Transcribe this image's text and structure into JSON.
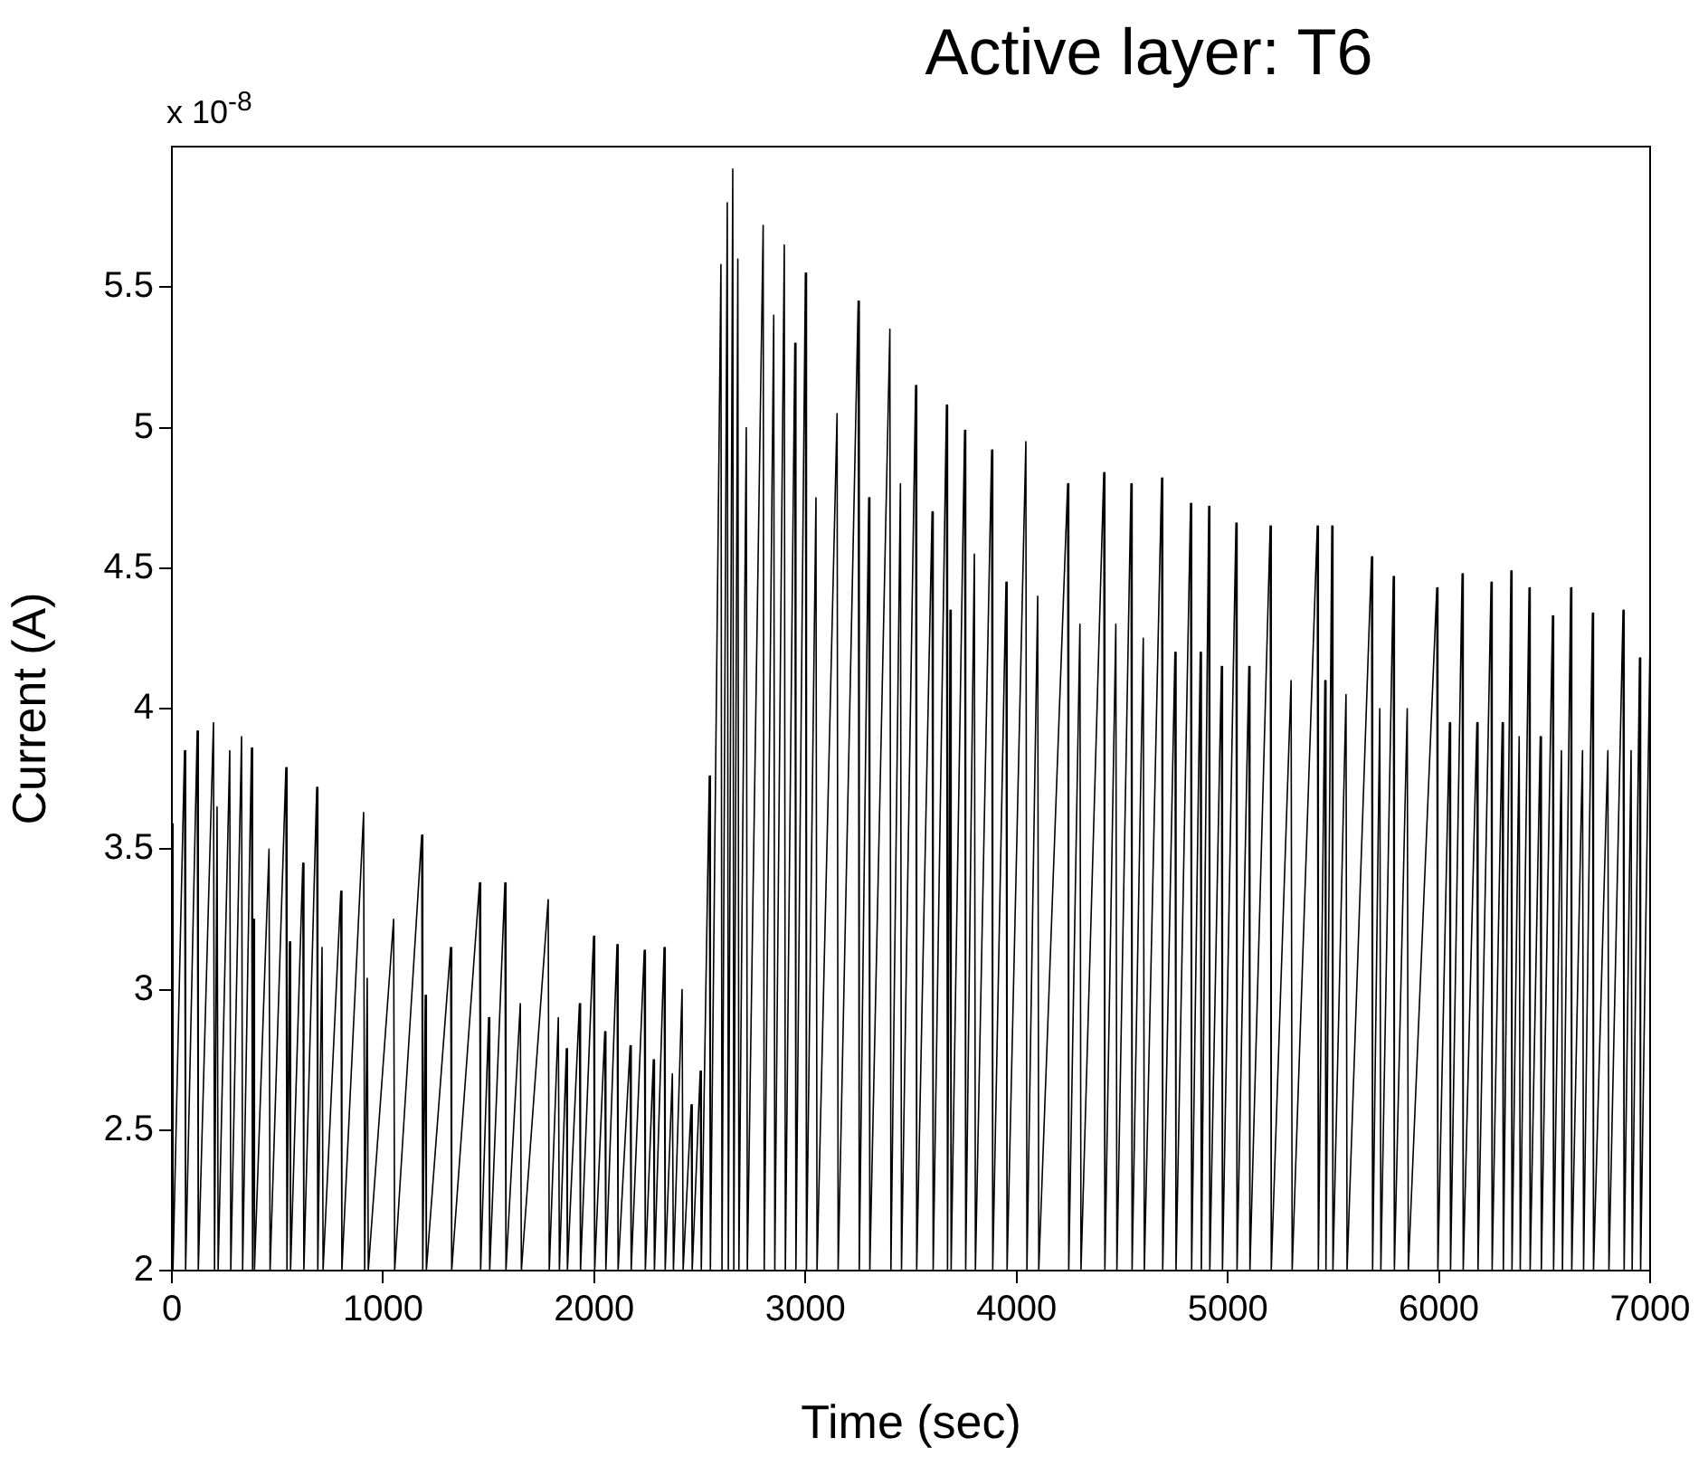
{
  "chart_data": {
    "type": "line",
    "title": "Active layer: T6",
    "xlabel": "Time (sec)",
    "ylabel": "Current (A)",
    "annotations": [
      "x 10$^{-8}$"
    ],
    "xlim": [
      0,
      7000
    ],
    "xticks": [
      0,
      1000,
      2000,
      3000,
      4000,
      5000,
      6000,
      7000
    ],
    "ylim": [
      2,
      6
    ],
    "yticks": [
      2,
      2.5,
      3,
      3.5,
      4,
      4.5,
      5,
      5.5
    ],
    "grid": false,
    "legend": false,
    "marker": "none",
    "line_style": "solid",
    "series": [
      {
        "color": "#000000",
        "x": [
          0,
          5,
          60,
          65,
          120,
          125,
          197,
          202,
          214,
          219,
          274,
          279,
          330,
          335,
          377,
          382,
          386,
          391,
          460,
          465,
          540,
          545,
          557,
          562,
          620,
          625,
          686,
          691,
          711,
          716,
          800,
          805,
          908,
          913,
          925,
          930,
          1050,
          1055,
          1183,
          1188,
          1200,
          1205,
          1320,
          1325,
          1457,
          1462,
          1500,
          1505,
          1577,
          1582,
          1650,
          1655,
          1782,
          1787,
          1830,
          1835,
          1868,
          1873,
          1930,
          1935,
          1997,
          2002,
          2050,
          2055,
          2108,
          2113,
          2170,
          2175,
          2237,
          2242,
          2280,
          2285,
          2331,
          2336,
          2370,
          2375,
          2416,
          2421,
          2459,
          2464,
          2502,
          2507,
          2545,
          2550,
          2600,
          2605,
          2630,
          2635,
          2656,
          2661,
          2680,
          2685,
          2720,
          2725,
          2800,
          2805,
          2850,
          2855,
          2900,
          2905,
          2950,
          2955,
          3000,
          3005,
          3050,
          3055,
          3150,
          3155,
          3250,
          3255,
          3300,
          3305,
          3400,
          3405,
          3450,
          3455,
          3522,
          3527,
          3600,
          3605,
          3668,
          3673,
          3685,
          3690,
          3754,
          3759,
          3800,
          3805,
          3882,
          3887,
          3950,
          3955,
          4044,
          4049,
          4100,
          4105,
          4242,
          4247,
          4300,
          4305,
          4413,
          4418,
          4470,
          4475,
          4542,
          4547,
          4600,
          4605,
          4687,
          4692,
          4750,
          4755,
          4824,
          4829,
          4870,
          4875,
          4910,
          4915,
          4970,
          4975,
          5039,
          5044,
          5100,
          5105,
          5201,
          5206,
          5300,
          5305,
          5424,
          5429,
          5460,
          5465,
          5493,
          5498,
          5560,
          5565,
          5681,
          5686,
          5720,
          5725,
          5784,
          5789,
          5850,
          5855,
          5990,
          5995,
          6050,
          6055,
          6110,
          6115,
          6180,
          6185,
          6247,
          6252,
          6300,
          6305,
          6341,
          6346,
          6380,
          6385,
          6427,
          6432,
          6480,
          6485,
          6538,
          6543,
          6580,
          6585,
          6624,
          6629,
          6680,
          6685,
          6727,
          6732,
          6800,
          6805,
          6872,
          6877,
          6910,
          6915,
          6950,
          6955,
          7000
        ],
        "values": [
          3.59,
          2,
          3.85,
          2,
          3.92,
          2,
          3.95,
          2,
          3.65,
          2,
          3.85,
          2,
          3.9,
          2,
          3.86,
          2,
          3.25,
          2,
          3.5,
          2,
          3.79,
          2,
          3.17,
          2,
          3.45,
          2,
          3.72,
          2,
          3.15,
          2,
          3.35,
          2,
          3.63,
          2,
          3.04,
          2,
          3.25,
          2,
          3.55,
          2,
          2.98,
          2,
          3.15,
          2,
          3.38,
          2,
          2.9,
          2,
          3.38,
          2,
          2.95,
          2,
          3.32,
          2,
          2.9,
          2,
          2.79,
          2,
          2.95,
          2,
          3.19,
          2,
          2.85,
          2,
          3.16,
          2,
          2.8,
          2,
          3.14,
          2,
          2.75,
          2,
          3.15,
          2,
          2.7,
          2,
          3.0,
          2,
          2.59,
          2,
          2.71,
          2,
          3.76,
          2,
          5.58,
          2,
          5.8,
          2,
          5.92,
          2,
          5.6,
          2,
          5.0,
          2,
          5.72,
          2,
          5.4,
          2,
          5.65,
          2,
          5.3,
          2,
          5.55,
          2,
          4.75,
          2,
          5.05,
          2,
          5.45,
          2,
          4.75,
          2,
          5.35,
          2,
          4.8,
          2,
          5.15,
          2,
          4.7,
          2,
          5.08,
          2,
          4.35,
          2,
          4.99,
          2,
          4.55,
          2,
          4.92,
          2,
          4.45,
          2,
          4.95,
          2,
          4.4,
          2,
          4.8,
          2,
          4.3,
          2,
          4.84,
          2,
          4.3,
          2,
          4.8,
          2,
          4.25,
          2,
          4.82,
          2,
          4.2,
          2,
          4.73,
          2,
          4.2,
          2,
          4.72,
          2,
          4.15,
          2,
          4.66,
          2,
          4.15,
          2,
          4.65,
          2,
          4.1,
          2,
          4.65,
          2,
          4.1,
          2,
          4.65,
          2,
          4.05,
          2,
          4.54,
          2,
          4.0,
          2,
          4.47,
          2,
          4.0,
          2,
          4.43,
          2,
          3.95,
          2,
          4.48,
          2,
          3.95,
          2,
          4.45,
          2,
          3.95,
          2,
          4.49,
          2,
          3.9,
          2,
          4.43,
          2,
          3.9,
          2,
          4.33,
          2,
          3.85,
          2,
          4.43,
          2,
          3.85,
          2,
          4.34,
          2,
          3.85,
          2,
          4.35,
          2,
          3.85,
          2,
          4.18,
          2,
          4.25
        ]
      }
    ]
  }
}
